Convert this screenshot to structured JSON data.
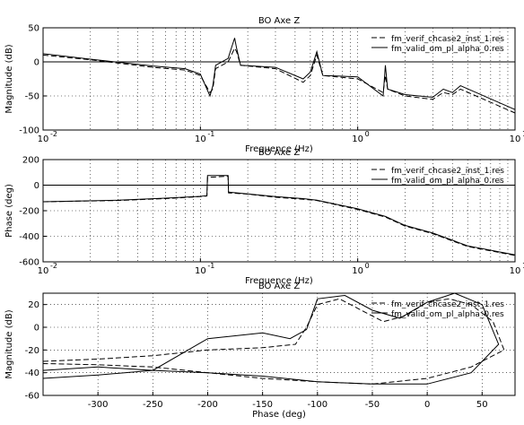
{
  "chart_data": [
    {
      "type": "line",
      "title": "BO Axe Z",
      "xlabel": "Frequence (Hz)",
      "ylabel": "Magnitude (dB)",
      "xscale": "log",
      "xlim": [
        0.01,
        10
      ],
      "ylim": [
        -100,
        50
      ],
      "yticks": [
        -100,
        -50,
        0,
        50
      ],
      "xticks": [
        0.01,
        0.1,
        1,
        10
      ],
      "xtick_labels": [
        "10",
        "10",
        "10",
        "10"
      ],
      "xtick_exponents": [
        "-2",
        "-1",
        "0",
        "1"
      ],
      "grid": true,
      "legend_position": "top-right",
      "legend": [
        "fm_verif_chcase2_inst_1.res",
        "fm_valid_om_pl_alpha_0.res"
      ],
      "series": [
        {
          "name": "fm_verif_chcase2_inst_1.res",
          "style": "dashed",
          "x": [
            0.01,
            0.02,
            0.05,
            0.08,
            0.1,
            0.115,
            0.12,
            0.125,
            0.15,
            0.165,
            0.17,
            0.18,
            0.3,
            0.45,
            0.5,
            0.55,
            0.6,
            1.0,
            1.45,
            1.5,
            1.55,
            2.0,
            3.0,
            3.5,
            4.0,
            4.5,
            10
          ],
          "y": [
            10,
            3,
            -8,
            -12,
            -20,
            -45,
            -40,
            -10,
            0,
            20,
            15,
            -5,
            -10,
            -30,
            -20,
            10,
            -20,
            -25,
            -45,
            -20,
            -40,
            -50,
            -55,
            -45,
            -48,
            -40,
            -75
          ]
        },
        {
          "name": "fm_valid_om_pl_alpha_0.res",
          "style": "solid",
          "x": [
            0.01,
            0.02,
            0.05,
            0.08,
            0.1,
            0.115,
            0.12,
            0.125,
            0.15,
            0.165,
            0.17,
            0.18,
            0.3,
            0.45,
            0.5,
            0.55,
            0.6,
            1.0,
            1.45,
            1.5,
            1.55,
            2.0,
            3.0,
            3.5,
            4.0,
            4.5,
            10
          ],
          "y": [
            12,
            4,
            -6,
            -10,
            -18,
            -50,
            -35,
            -5,
            5,
            35,
            20,
            -5,
            -8,
            -25,
            -15,
            15,
            -20,
            -22,
            -50,
            -5,
            -40,
            -48,
            -52,
            -40,
            -45,
            -35,
            -70
          ]
        },
        {
          "name": "",
          "style": "reference",
          "x": [
            0.01,
            10
          ],
          "y": [
            0,
            0
          ]
        }
      ]
    },
    {
      "type": "line",
      "title": "BO Axe Z",
      "xlabel": "Frequence (Hz)",
      "ylabel": "Phase (deg)",
      "xscale": "log",
      "xlim": [
        0.01,
        10
      ],
      "ylim": [
        -600,
        200
      ],
      "yticks": [
        -600,
        -400,
        -200,
        0,
        200
      ],
      "xticks": [
        0.01,
        0.1,
        1,
        10
      ],
      "xtick_labels": [
        "10",
        "10",
        "10",
        "10"
      ],
      "xtick_exponents": [
        "-2",
        "-1",
        "0",
        "1"
      ],
      "grid": true,
      "legend_position": "top-right",
      "legend": [
        "fm_verif_chcase2_inst_1.res",
        "fm_valid_om_pl_alpha_0.res"
      ],
      "series": [
        {
          "name": "fm_verif_chcase2_inst_1.res",
          "style": "dashed",
          "x": [
            0.01,
            0.03,
            0.06,
            0.1,
            0.11,
            0.111,
            0.15,
            0.151,
            0.2,
            0.3,
            0.45,
            0.55,
            1.0,
            1.5,
            2.0,
            3.0,
            5.0,
            10
          ],
          "y": [
            -130,
            -120,
            -105,
            -90,
            -85,
            60,
            70,
            -60,
            -70,
            -95,
            -110,
            -120,
            -190,
            -250,
            -320,
            -380,
            -480,
            -550
          ]
        },
        {
          "name": "fm_valid_om_pl_alpha_0.res",
          "style": "solid",
          "x": [
            0.01,
            0.03,
            0.06,
            0.1,
            0.11,
            0.111,
            0.15,
            0.151,
            0.2,
            0.3,
            0.45,
            0.55,
            1.0,
            1.5,
            2.0,
            3.0,
            5.0,
            10
          ],
          "y": [
            -130,
            -118,
            -102,
            -88,
            -82,
            75,
            75,
            -55,
            -68,
            -90,
            -105,
            -118,
            -185,
            -245,
            -315,
            -375,
            -475,
            -545
          ]
        },
        {
          "name": "",
          "style": "reference",
          "x": [
            0.01,
            10
          ],
          "y": [
            0,
            0
          ]
        }
      ]
    },
    {
      "type": "line",
      "title": "BO Axe Z",
      "xlabel": "Phase (deg)",
      "ylabel": "Magnitude (dB)",
      "xlim": [
        -350,
        80
      ],
      "ylim": [
        -60,
        30
      ],
      "xticks": [
        -300,
        -250,
        -200,
        -150,
        -100,
        -50,
        0,
        50
      ],
      "yticks": [
        -60,
        -40,
        -20,
        0,
        20
      ],
      "grid": true,
      "legend_position": "top-right",
      "legend": [
        "fm_verif_chcase2_inst_1.res",
        "fm_valid_om_pl_alpha_0.res"
      ],
      "series": [
        {
          "name": "fm_verif_chcase2_inst_1.res",
          "style": "dashed",
          "x": [
            -350,
            -300,
            -250,
            -200,
            -150,
            -120,
            -110,
            -100,
            -80,
            -60,
            -40,
            -20,
            0,
            20,
            40,
            60,
            70,
            40,
            0,
            -50,
            -100,
            -150,
            -200,
            -250,
            -300,
            -350
          ],
          "y": [
            -30,
            -28,
            -25,
            -20,
            -18,
            -15,
            0,
            20,
            25,
            15,
            5,
            10,
            22,
            25,
            20,
            5,
            -20,
            -35,
            -45,
            -50,
            -48,
            -45,
            -40,
            -35,
            -33,
            -32
          ]
        },
        {
          "name": "fm_valid_om_pl_alpha_0.res",
          "style": "solid",
          "x": [
            -350,
            -300,
            -250,
            -200,
            -150,
            -125,
            -110,
            -100,
            -75,
            -50,
            -25,
            0,
            25,
            50,
            65,
            40,
            0,
            -50,
            -100,
            -150,
            -200,
            -250,
            -300,
            -350
          ],
          "y": [
            -45,
            -42,
            -38,
            -10,
            -5,
            -10,
            -2,
            25,
            28,
            15,
            8,
            22,
            30,
            20,
            -15,
            -40,
            -50,
            -50,
            -48,
            -43,
            -40,
            -38,
            -35,
            -38
          ]
        }
      ]
    }
  ]
}
